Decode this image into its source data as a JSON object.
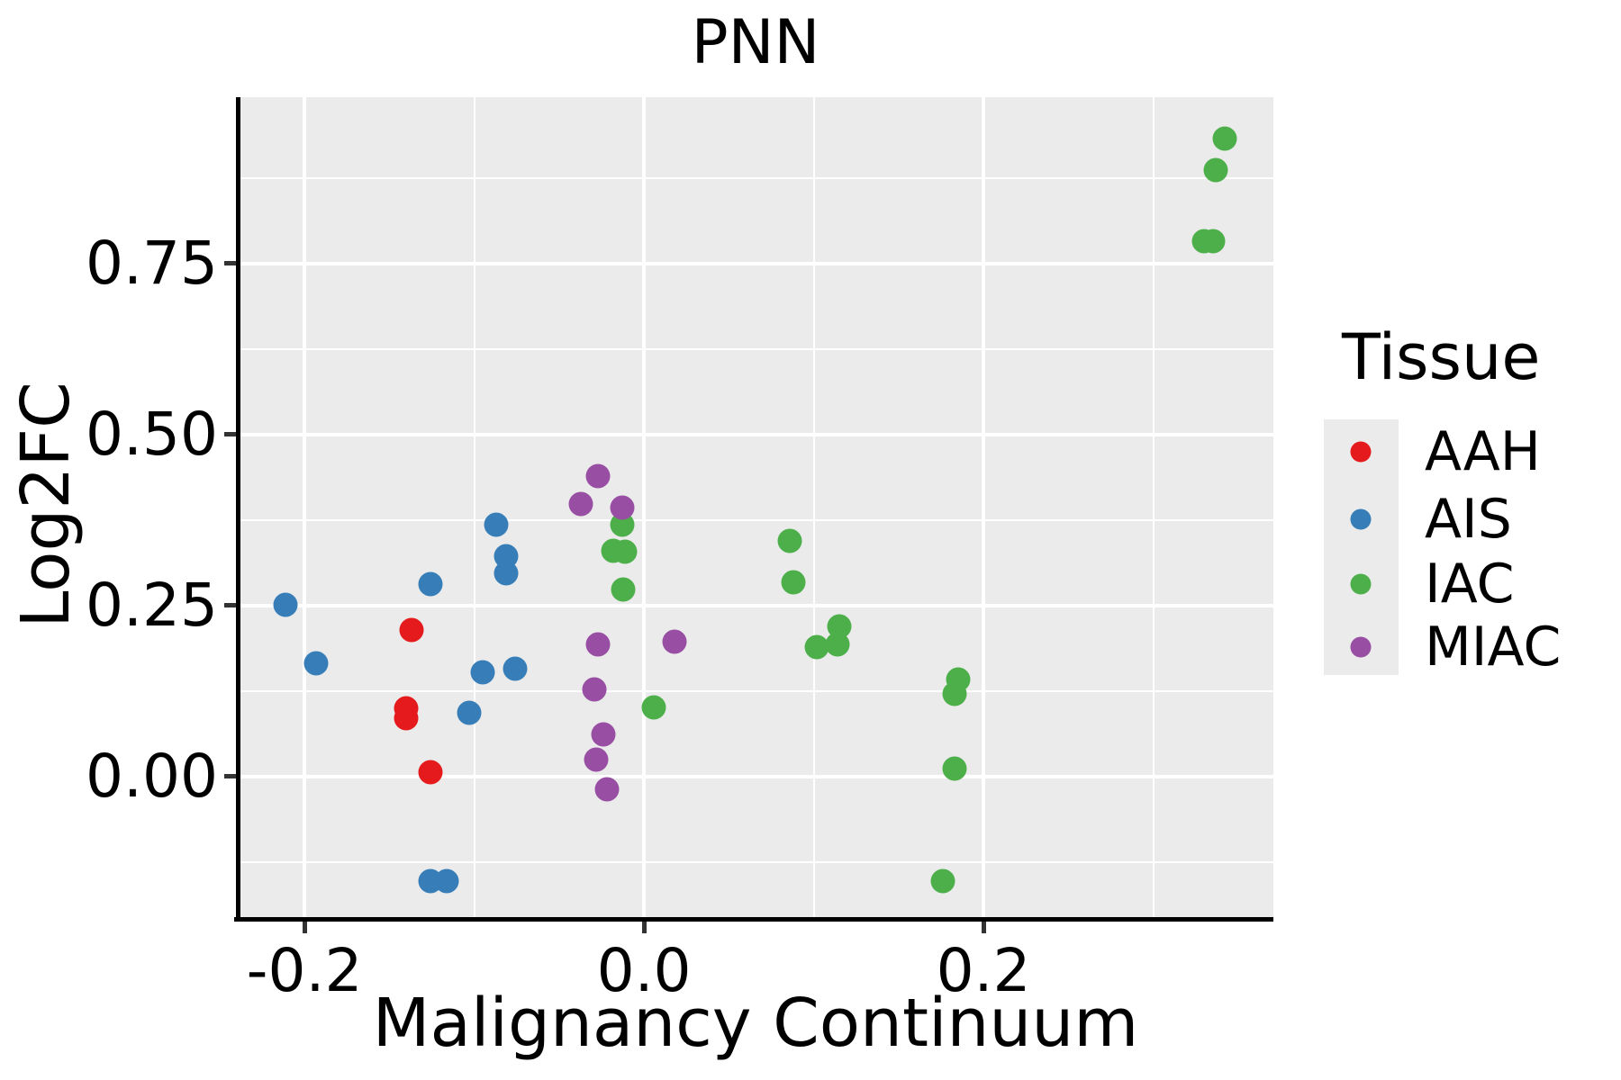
{
  "chart_data": {
    "type": "scatter",
    "title": "PNN",
    "xlabel": "Malignancy Continuum",
    "ylabel": "Log2FC",
    "xlim": [
      -0.2393,
      0.3708
    ],
    "ylim": [
      -0.2079,
      0.9934
    ],
    "grid": "on",
    "panel_background": "#EBEBEB",
    "gridline_color": "#FFFFFF",
    "x_ticks": {
      "values": [
        -0.2,
        0.0,
        0.2
      ],
      "labels": [
        "-0.2",
        "0.0",
        "0.2"
      ]
    },
    "y_ticks": {
      "values": [
        0.0,
        0.25,
        0.5,
        0.75
      ],
      "labels": [
        "0.00",
        "0.25",
        "0.50",
        "0.75"
      ]
    },
    "x_minor": [
      -0.1,
      0.1,
      0.3
    ],
    "y_minor": [
      -0.125,
      0.125,
      0.375,
      0.625,
      0.875
    ],
    "legend": {
      "title": "Tissue",
      "position": "right",
      "entries": [
        {
          "label": "AAH",
          "color": "#E41A1C"
        },
        {
          "label": "AIS",
          "color": "#377EB8"
        },
        {
          "label": "IAC",
          "color": "#4DAF4A"
        },
        {
          "label": "MIAC",
          "color": "#984EA3"
        }
      ]
    },
    "series": [
      {
        "name": "AAH",
        "color": "#E41A1C",
        "points": [
          [
            -0.137,
            0.215
          ],
          [
            -0.14,
            0.1
          ],
          [
            -0.14,
            0.086
          ],
          [
            -0.126,
            0.007
          ]
        ]
      },
      {
        "name": "AIS",
        "color": "#377EB8",
        "points": [
          [
            -0.211,
            0.251
          ],
          [
            -0.193,
            0.166
          ],
          [
            -0.126,
            0.281
          ],
          [
            -0.087,
            0.368
          ],
          [
            -0.081,
            0.322
          ],
          [
            -0.081,
            0.297
          ],
          [
            -0.095,
            0.153
          ],
          [
            -0.076,
            0.158
          ],
          [
            -0.103,
            0.094
          ],
          [
            -0.126,
            -0.153
          ],
          [
            -0.116,
            -0.153
          ]
        ]
      },
      {
        "name": "IAC",
        "color": "#4DAF4A",
        "points": [
          [
            0.342,
            0.933
          ],
          [
            0.337,
            0.887
          ],
          [
            0.33,
            0.783
          ],
          [
            0.335,
            0.783
          ],
          [
            -0.013,
            0.368
          ],
          [
            -0.018,
            0.33
          ],
          [
            -0.011,
            0.329
          ],
          [
            -0.012,
            0.274
          ],
          [
            0.086,
            0.345
          ],
          [
            0.088,
            0.284
          ],
          [
            0.115,
            0.22
          ],
          [
            0.102,
            0.189
          ],
          [
            0.114,
            0.193
          ],
          [
            0.006,
            0.101
          ],
          [
            0.185,
            0.142
          ],
          [
            0.183,
            0.121
          ],
          [
            0.183,
            0.012
          ],
          [
            0.176,
            -0.153
          ]
        ]
      },
      {
        "name": "MIAC",
        "color": "#984EA3",
        "points": [
          [
            -0.027,
            0.44
          ],
          [
            -0.037,
            0.399
          ],
          [
            -0.013,
            0.393
          ],
          [
            -0.027,
            0.193
          ],
          [
            0.018,
            0.197
          ],
          [
            -0.029,
            0.128
          ],
          [
            -0.024,
            0.062
          ],
          [
            -0.028,
            0.025
          ],
          [
            -0.022,
            -0.019
          ]
        ]
      }
    ]
  }
}
